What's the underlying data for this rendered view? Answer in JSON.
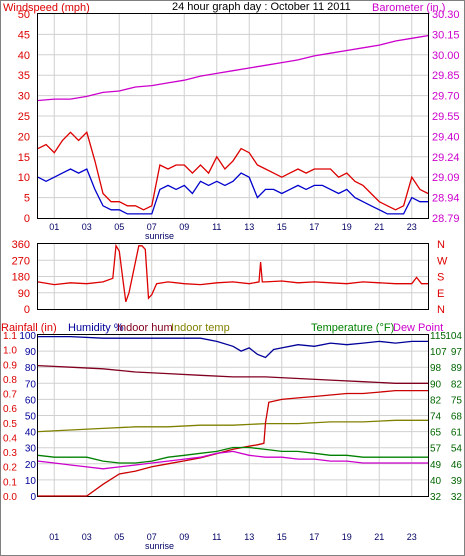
{
  "chart_data": [
    {
      "id": "wind_baro",
      "type": "line",
      "title": "24 hour graph day : October 11 2011",
      "left_label": "Windspeed (mph)",
      "right_label": "Barometer (in.)",
      "ylim_left": [
        0,
        50
      ],
      "yticks_left": [
        "0",
        "5",
        "10",
        "15",
        "20",
        "25",
        "30",
        "35",
        "40",
        "45",
        "50"
      ],
      "ylim_right": [
        28.79,
        30.3
      ],
      "yticks_right": [
        "28.79",
        "28.94",
        "29.09",
        "29.24",
        "29.40",
        "29.55",
        "29.70",
        "29.85",
        "30.00",
        "30.15",
        "30.30"
      ],
      "x_hours": [
        0,
        24
      ],
      "xticks": [
        "01",
        "03",
        "05",
        "07",
        "09",
        "11",
        "13",
        "15",
        "17",
        "19",
        "21",
        "23"
      ],
      "sunrise_label": "sunrise",
      "grid": true,
      "series": [
        {
          "color": "#dd0000",
          "axis": "left",
          "x": [
            0.0,
            0.5,
            1.0,
            1.5,
            2.0,
            2.5,
            3.0,
            3.5,
            4.0,
            4.5,
            5.0,
            5.5,
            6.0,
            6.5,
            7.0,
            7.5,
            8.0,
            8.5,
            9.0,
            9.5,
            10.0,
            10.5,
            11.0,
            11.5,
            12.0,
            12.5,
            13.0,
            13.5,
            14.0,
            14.5,
            15.0,
            15.5,
            16.0,
            16.5,
            17.0,
            17.5,
            18.0,
            18.5,
            19.0,
            19.5,
            20.0,
            20.5,
            21.0,
            21.5,
            22.0,
            22.5,
            23.0,
            23.5,
            24.0
          ],
          "values": [
            17,
            18,
            16,
            19,
            21,
            19,
            21,
            14,
            6,
            4,
            4,
            3,
            3,
            2,
            3,
            13,
            12,
            13,
            13,
            11,
            13,
            11,
            15,
            12,
            14,
            17,
            16,
            13,
            12,
            11,
            10,
            11,
            12,
            11,
            12,
            12,
            12,
            10,
            11,
            9,
            8,
            6,
            4,
            3,
            2,
            3,
            10,
            7,
            6
          ]
        },
        {
          "color": "#0000cc",
          "axis": "left",
          "x": [
            0.0,
            0.5,
            1.0,
            1.5,
            2.0,
            2.5,
            3.0,
            3.5,
            4.0,
            4.5,
            5.0,
            5.5,
            6.0,
            6.5,
            7.0,
            7.5,
            8.0,
            8.5,
            9.0,
            9.5,
            10.0,
            10.5,
            11.0,
            11.5,
            12.0,
            12.5,
            13.0,
            13.5,
            14.0,
            14.5,
            15.0,
            15.5,
            16.0,
            16.5,
            17.0,
            17.5,
            18.0,
            18.5,
            19.0,
            19.5,
            20.0,
            20.5,
            21.0,
            21.5,
            22.0,
            22.5,
            23.0,
            23.5,
            24.0
          ],
          "values": [
            10,
            9,
            10,
            11,
            12,
            11,
            12,
            7,
            3,
            2,
            2,
            1,
            1,
            1,
            1,
            7,
            8,
            7,
            8,
            6,
            9,
            8,
            9,
            8,
            9,
            11,
            10,
            5,
            7,
            7,
            6,
            7,
            8,
            7,
            8,
            8,
            7,
            6,
            7,
            5,
            4,
            3,
            2,
            1,
            1,
            1,
            5,
            4,
            4
          ]
        },
        {
          "color": "#cc00cc",
          "axis": "right",
          "x": [
            0,
            1,
            2,
            3,
            4,
            5,
            6,
            7,
            8,
            9,
            10,
            11,
            12,
            13,
            14,
            15,
            16,
            17,
            18,
            19,
            20,
            21,
            22,
            23,
            24
          ],
          "values": [
            29.66,
            29.67,
            29.67,
            29.69,
            29.72,
            29.73,
            29.76,
            29.77,
            29.79,
            29.81,
            29.84,
            29.86,
            29.88,
            29.9,
            29.92,
            29.94,
            29.96,
            29.99,
            30.01,
            30.03,
            30.05,
            30.07,
            30.1,
            30.12,
            30.14
          ]
        }
      ]
    },
    {
      "id": "wind_dir",
      "type": "line",
      "ylim": [
        0,
        360
      ],
      "yticks": [
        "0",
        "90",
        "180",
        "270",
        "360"
      ],
      "compass_labels": [
        "N",
        "W",
        "S",
        "E",
        "N"
      ],
      "x_hours": [
        0,
        24
      ],
      "grid": true,
      "series": [
        {
          "color": "#dd0000",
          "x": [
            0,
            1,
            2,
            3,
            4,
            4.6,
            4.8,
            5.0,
            5.2,
            5.4,
            5.6,
            6.2,
            6.4,
            6.6,
            6.8,
            7.0,
            7.3,
            8,
            9,
            10,
            11,
            12,
            13,
            13.6,
            13.7,
            13.8,
            14,
            15,
            16,
            17,
            18,
            19,
            20,
            21,
            22,
            23,
            23.3,
            23.6,
            24
          ],
          "values": [
            150,
            135,
            145,
            140,
            150,
            170,
            350,
            320,
            180,
            40,
            90,
            350,
            350,
            330,
            60,
            80,
            140,
            150,
            140,
            135,
            145,
            150,
            140,
            150,
            260,
            150,
            150,
            155,
            145,
            150,
            145,
            140,
            150,
            145,
            140,
            140,
            175,
            140,
            140
          ]
        }
      ]
    },
    {
      "id": "rain_temp",
      "type": "line",
      "labels_left": [
        "Rainfall (in)",
        "Humidity %",
        "Indoor hum",
        "Indoor temp"
      ],
      "labels_right": [
        "Temperature (°F)",
        "Dew Point"
      ],
      "rain_ticks": [
        "0.0",
        "0.1",
        "0.2",
        "0.3",
        "0.4",
        "0.5",
        "0.6",
        "0.7",
        "0.8",
        "0.9",
        "1.0",
        "1.1"
      ],
      "humidity_ticks": [
        "0",
        "10",
        "20",
        "30",
        "40",
        "50",
        "60",
        "70",
        "80",
        "90",
        "100"
      ],
      "temp_ticks_a": [
        "32",
        "40",
        "49",
        "57",
        "65",
        "74",
        "82",
        "90",
        "98",
        "107",
        "115"
      ],
      "temp_ticks_b": [
        "32",
        "39",
        "46",
        "54",
        "61",
        "68",
        "75",
        "82",
        "89",
        "97",
        "104"
      ],
      "ylim_rain": [
        0,
        1.1
      ],
      "ylim_humidity": [
        0,
        100
      ],
      "ylim_temp_right": [
        32,
        115
      ],
      "x_hours": [
        0,
        24
      ],
      "grid": true,
      "series": [
        {
          "color": "#000099",
          "axis": "humidity",
          "x": [
            0,
            2,
            4,
            6,
            8,
            10,
            11,
            12,
            12.5,
            13,
            13.5,
            14,
            14.5,
            15,
            16,
            17,
            18,
            19,
            20,
            21,
            22,
            23,
            24
          ],
          "values": [
            99,
            99,
            98,
            98,
            98,
            98,
            96,
            93,
            90,
            92,
            88,
            86,
            91,
            92,
            94,
            93,
            95,
            94,
            95,
            96,
            95,
            96,
            96
          ]
        },
        {
          "color": "#800020",
          "axis": "humidity",
          "x": [
            0,
            2,
            4,
            6,
            8,
            10,
            12,
            14,
            16,
            18,
            20,
            22,
            24
          ],
          "values": [
            81,
            80,
            79,
            77,
            76,
            75,
            74,
            74,
            73,
            72,
            71,
            70,
            70
          ]
        },
        {
          "color": "#808000",
          "axis": "humidity",
          "x": [
            0,
            2,
            4,
            6,
            8,
            10,
            12,
            14,
            16,
            18,
            20,
            22,
            24
          ],
          "values": [
            40,
            41,
            42,
            43,
            43,
            44,
            44,
            45,
            45,
            46,
            46,
            47,
            47
          ]
        },
        {
          "color": "#cc0000",
          "axis": "rain",
          "x": [
            0,
            1,
            2,
            3,
            4,
            5,
            6,
            7,
            8,
            9,
            10,
            11,
            12,
            13,
            13.5,
            13.9,
            14.0,
            14.2,
            15,
            16,
            17,
            18,
            19,
            20,
            21,
            22,
            23,
            24
          ],
          "values": [
            0.0,
            0.0,
            0.0,
            0.0,
            0.08,
            0.15,
            0.17,
            0.2,
            0.22,
            0.24,
            0.26,
            0.29,
            0.32,
            0.34,
            0.35,
            0.36,
            0.5,
            0.64,
            0.66,
            0.67,
            0.68,
            0.69,
            0.7,
            0.7,
            0.71,
            0.72,
            0.72,
            0.72
          ]
        },
        {
          "color": "#008000",
          "axis": "temp",
          "x": [
            0,
            1,
            2,
            3,
            4,
            5,
            6,
            7,
            8,
            9,
            10,
            11,
            12,
            13,
            14,
            15,
            16,
            17,
            18,
            19,
            20,
            21,
            22,
            23,
            24
          ],
          "values": [
            53,
            52,
            52,
            52,
            50,
            49,
            49,
            50,
            52,
            53,
            54,
            55,
            57,
            57,
            56,
            55,
            55,
            54,
            53,
            53,
            52,
            52,
            52,
            52,
            52
          ]
        },
        {
          "color": "#cc00cc",
          "axis": "temp",
          "x": [
            0,
            1,
            2,
            3,
            4,
            5,
            6,
            7,
            8,
            9,
            10,
            11,
            12,
            13,
            14,
            15,
            16,
            17,
            18,
            19,
            20,
            21,
            22,
            23,
            24
          ],
          "values": [
            50,
            49,
            48,
            47,
            46,
            47,
            48,
            49,
            50,
            51,
            52,
            54,
            55,
            53,
            52,
            52,
            51,
            51,
            50,
            50,
            49,
            49,
            49,
            49,
            49
          ]
        }
      ]
    }
  ]
}
